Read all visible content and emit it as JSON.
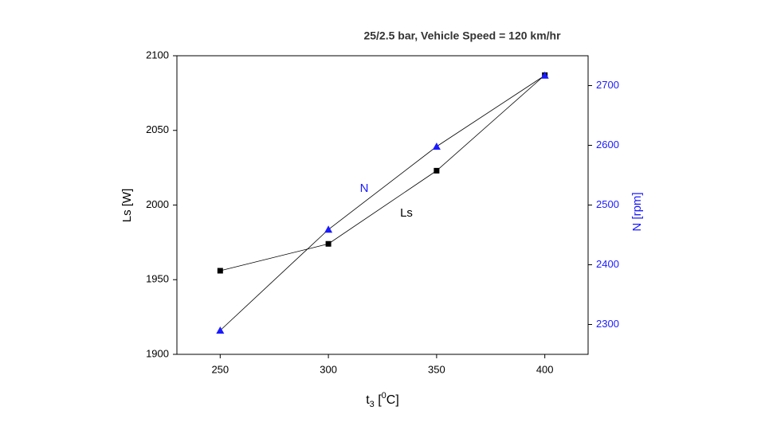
{
  "chart_data": {
    "type": "line",
    "title": "25/2.5 bar,  Vehicle Speed = 120 km/hr",
    "y_label": "Ls [W]",
    "y2_label": "N [rpm]",
    "x_label_parts": [
      "t",
      "3",
      " [",
      "0",
      "C]"
    ],
    "x": [
      250,
      300,
      350,
      400
    ],
    "xlim": [
      230,
      420
    ],
    "xticks": [
      250,
      300,
      350,
      400
    ],
    "ylim": [
      1900,
      2100
    ],
    "yticks": [
      1900,
      1950,
      2000,
      2050,
      2100
    ],
    "y2lim": [
      2250,
      2750
    ],
    "y2ticks": [
      2300,
      2400,
      2500,
      2600,
      2700
    ],
    "series": [
      {
        "name": "Ls",
        "color": "#000000",
        "marker": "square",
        "values": [
          1956,
          1974,
          2023,
          2087
        ]
      },
      {
        "name": "N",
        "color": "#1a1aff",
        "marker": "triangle",
        "axis": "y2",
        "values": [
          2290,
          2459,
          2598,
          2717
        ]
      }
    ]
  }
}
